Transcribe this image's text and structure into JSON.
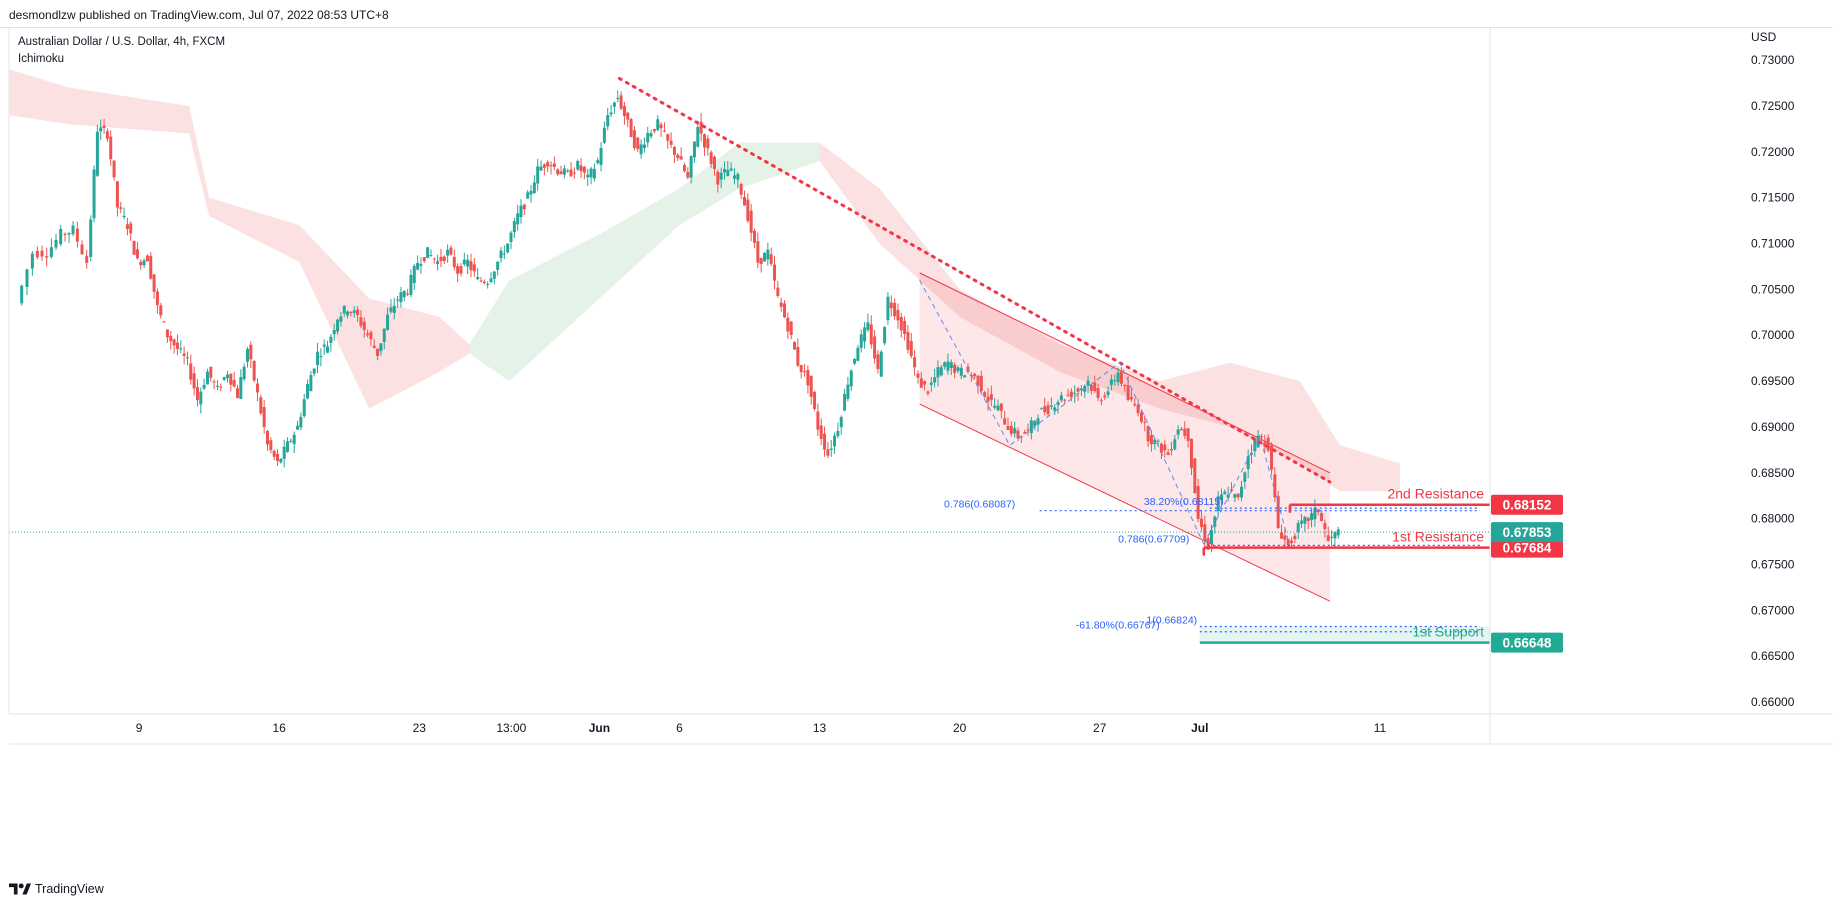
{
  "header": {
    "publisher_line": "desmondlzw published on TradingView.com, Jul 07, 2022 08:53 UTC+8"
  },
  "legend": {
    "symbol_line": "Australian Dollar / U.S. Dollar, 4h, FXCM",
    "indicator": "Ichimoku"
  },
  "footer": {
    "brand": "TradingView"
  },
  "colors": {
    "up": "#26a69a",
    "down": "#ef5350",
    "resistance": "#f23645",
    "support": "#22ab94",
    "fib": "#2962ff",
    "cloud_red": "#f8c9c9",
    "cloud_green": "#cfe8d5"
  },
  "chart_data": {
    "type": "candlestick",
    "currency_label": "USD",
    "y_ticks": [
      "0.73000",
      "0.72500",
      "0.72000",
      "0.71500",
      "0.71000",
      "0.70500",
      "0.70000",
      "0.69500",
      "0.69000",
      "0.68500",
      "0.68000",
      "0.67500",
      "0.67000",
      "0.66500",
      "0.66000"
    ],
    "ylim": [
      0.6587,
      0.7335
    ],
    "x_ticks": [
      {
        "label": "9",
        "day": 9
      },
      {
        "label": "16",
        "day": 16
      },
      {
        "label": "23",
        "day": 23
      },
      {
        "label": "13:00",
        "day": 27.6
      },
      {
        "label": "Jun",
        "day": 32,
        "bold": true
      },
      {
        "label": "6",
        "day": 36
      },
      {
        "label": "13",
        "day": 43
      },
      {
        "label": "20",
        "day": 50
      },
      {
        "label": "27",
        "day": 57
      },
      {
        "label": "Jul",
        "day": 62,
        "bold": true
      },
      {
        "label": "11",
        "day": 71
      }
    ],
    "x_axis_days": [
      2.5,
      76.5
    ],
    "price_path": [
      [
        3.0,
        0.7035
      ],
      [
        3.8,
        0.709
      ],
      [
        4.5,
        0.709
      ],
      [
        5.2,
        0.711
      ],
      [
        5.8,
        0.7115
      ],
      [
        6.5,
        0.708
      ],
      [
        7.0,
        0.7225
      ],
      [
        7.5,
        0.722
      ],
      [
        8.0,
        0.714
      ],
      [
        8.5,
        0.712
      ],
      [
        9.0,
        0.708
      ],
      [
        9.5,
        0.7085
      ],
      [
        10.0,
        0.703
      ],
      [
        10.5,
        0.7
      ],
      [
        11.0,
        0.6985
      ],
      [
        11.5,
        0.697
      ],
      [
        12.0,
        0.693
      ],
      [
        12.5,
        0.696
      ],
      [
        13.0,
        0.694
      ],
      [
        13.5,
        0.696
      ],
      [
        14.0,
        0.6935
      ],
      [
        14.5,
        0.6985
      ],
      [
        15.0,
        0.6935
      ],
      [
        15.5,
        0.688
      ],
      [
        16.0,
        0.686
      ],
      [
        16.5,
        0.688
      ],
      [
        17.0,
        0.69
      ],
      [
        17.5,
        0.6945
      ],
      [
        18.0,
        0.698
      ],
      [
        18.5,
        0.699
      ],
      [
        19.0,
        0.702
      ],
      [
        19.5,
        0.703
      ],
      [
        20.0,
        0.702
      ],
      [
        20.5,
        0.7
      ],
      [
        21.0,
        0.698
      ],
      [
        21.5,
        0.702
      ],
      [
        22.0,
        0.704
      ],
      [
        22.5,
        0.705
      ],
      [
        23.0,
        0.708
      ],
      [
        23.5,
        0.709
      ],
      [
        24.0,
        0.708
      ],
      [
        24.5,
        0.709
      ],
      [
        25.0,
        0.707
      ],
      [
        25.5,
        0.708
      ],
      [
        26.0,
        0.706
      ],
      [
        26.5,
        0.706
      ],
      [
        27.0,
        0.708
      ],
      [
        27.5,
        0.71
      ],
      [
        28.0,
        0.713
      ],
      [
        28.5,
        0.715
      ],
      [
        29.0,
        0.718
      ],
      [
        29.5,
        0.719
      ],
      [
        30.0,
        0.718
      ],
      [
        30.5,
        0.7175
      ],
      [
        31.0,
        0.7185
      ],
      [
        31.5,
        0.717
      ],
      [
        32.0,
        0.719
      ],
      [
        32.5,
        0.724
      ],
      [
        33.0,
        0.726
      ],
      [
        33.5,
        0.723
      ],
      [
        34.0,
        0.72
      ],
      [
        34.5,
        0.722
      ],
      [
        35.0,
        0.723
      ],
      [
        35.5,
        0.721
      ],
      [
        36.0,
        0.7195
      ],
      [
        36.5,
        0.717
      ],
      [
        37.0,
        0.723
      ],
      [
        37.5,
        0.72
      ],
      [
        38.0,
        0.717
      ],
      [
        38.5,
        0.718
      ],
      [
        39.0,
        0.717
      ],
      [
        39.5,
        0.713
      ],
      [
        40.0,
        0.708
      ],
      [
        40.5,
        0.709
      ],
      [
        41.0,
        0.704
      ],
      [
        41.5,
        0.701
      ],
      [
        42.0,
        0.697
      ],
      [
        42.5,
        0.695
      ],
      [
        43.0,
        0.69
      ],
      [
        43.5,
        0.687
      ],
      [
        44.0,
        0.69
      ],
      [
        44.5,
        0.695
      ],
      [
        45.0,
        0.699
      ],
      [
        45.5,
        0.701
      ],
      [
        46.0,
        0.696
      ],
      [
        46.5,
        0.704
      ],
      [
        47.0,
        0.702
      ],
      [
        47.5,
        0.699
      ],
      [
        48.0,
        0.695
      ],
      [
        48.5,
        0.694
      ],
      [
        49.0,
        0.696
      ],
      [
        49.5,
        0.697
      ],
      [
        50.0,
        0.696
      ],
      [
        50.5,
        0.696
      ],
      [
        51.0,
        0.695
      ],
      [
        51.5,
        0.693
      ],
      [
        52.0,
        0.692
      ],
      [
        52.5,
        0.69
      ],
      [
        53.0,
        0.689
      ],
      [
        53.5,
        0.6895
      ],
      [
        54.0,
        0.6915
      ],
      [
        54.5,
        0.692
      ],
      [
        55.0,
        0.693
      ],
      [
        55.5,
        0.6935
      ],
      [
        56.0,
        0.694
      ],
      [
        56.5,
        0.695
      ],
      [
        57.0,
        0.693
      ],
      [
        57.5,
        0.694
      ],
      [
        58.0,
        0.696
      ],
      [
        58.5,
        0.693
      ],
      [
        59.0,
        0.692
      ],
      [
        59.5,
        0.689
      ],
      [
        60.0,
        0.688
      ],
      [
        60.5,
        0.687
      ],
      [
        61.0,
        0.69
      ],
      [
        61.5,
        0.689
      ],
      [
        62.0,
        0.68
      ],
      [
        62.5,
        0.677
      ],
      [
        63.0,
        0.682
      ],
      [
        63.5,
        0.683
      ],
      [
        64.0,
        0.682
      ],
      [
        64.5,
        0.687
      ],
      [
        65.0,
        0.689
      ],
      [
        65.5,
        0.688
      ],
      [
        66.0,
        0.679
      ],
      [
        66.5,
        0.677
      ],
      [
        67.0,
        0.679
      ],
      [
        67.5,
        0.68
      ],
      [
        68.0,
        0.681
      ],
      [
        68.5,
        0.6775
      ],
      [
        69.0,
        0.6785
      ]
    ],
    "ichimoku_cloud": [
      {
        "from": 2.5,
        "to": 5.5,
        "color": "red",
        "top": [
          0.729,
          0.727
        ],
        "bottom": [
          0.724,
          0.723
        ]
      },
      {
        "from": 5.5,
        "to": 11.5,
        "color": "red",
        "top": [
          0.727,
          0.725
        ],
        "bottom": [
          0.723,
          0.722
        ]
      },
      {
        "from": 11.5,
        "to": 12.5,
        "color": "red",
        "top": [
          0.725,
          0.715
        ],
        "bottom": [
          0.722,
          0.713
        ]
      },
      {
        "from": 12.5,
        "to": 17.0,
        "color": "red",
        "top": [
          0.715,
          0.712
        ],
        "bottom": [
          0.713,
          0.708
        ]
      },
      {
        "from": 17.0,
        "to": 20.5,
        "color": "red",
        "top": [
          0.712,
          0.704
        ],
        "bottom": [
          0.708,
          0.692
        ]
      },
      {
        "from": 20.5,
        "to": 24.0,
        "color": "red",
        "top": [
          0.704,
          0.702
        ],
        "bottom": [
          0.692,
          0.696
        ]
      },
      {
        "from": 24.0,
        "to": 25.5,
        "color": "red",
        "top": [
          0.702,
          0.699
        ],
        "bottom": [
          0.696,
          0.698
        ]
      },
      {
        "from": 25.5,
        "to": 27.5,
        "color": "green",
        "top": [
          0.699,
          0.706
        ],
        "bottom": [
          0.698,
          0.695
        ]
      },
      {
        "from": 27.5,
        "to": 32.0,
        "color": "green",
        "top": [
          0.706,
          0.711
        ],
        "bottom": [
          0.695,
          0.704
        ]
      },
      {
        "from": 32.0,
        "to": 36.0,
        "color": "green",
        "top": [
          0.711,
          0.716
        ],
        "bottom": [
          0.704,
          0.712
        ]
      },
      {
        "from": 36.0,
        "to": 39.0,
        "color": "green",
        "top": [
          0.716,
          0.721
        ],
        "bottom": [
          0.712,
          0.716
        ]
      },
      {
        "from": 39.0,
        "to": 43.0,
        "color": "green",
        "top": [
          0.721,
          0.721
        ],
        "bottom": [
          0.716,
          0.719
        ]
      },
      {
        "from": 43.0,
        "to": 46.0,
        "color": "red",
        "top": [
          0.721,
          0.716
        ],
        "bottom": [
          0.719,
          0.71
        ]
      },
      {
        "from": 46.0,
        "to": 50.0,
        "color": "red",
        "top": [
          0.716,
          0.705
        ],
        "bottom": [
          0.71,
          0.702
        ]
      },
      {
        "from": 50.0,
        "to": 55.0,
        "color": "red",
        "top": [
          0.705,
          0.699
        ],
        "bottom": [
          0.702,
          0.696
        ]
      },
      {
        "from": 55.0,
        "to": 60.0,
        "color": "red",
        "top": [
          0.699,
          0.695
        ],
        "bottom": [
          0.696,
          0.692
        ]
      },
      {
        "from": 60.0,
        "to": 63.5,
        "color": "red",
        "top": [
          0.695,
          0.697
        ],
        "bottom": [
          0.692,
          0.69
        ]
      },
      {
        "from": 63.5,
        "to": 67.0,
        "color": "red",
        "top": [
          0.697,
          0.695
        ],
        "bottom": [
          0.69,
          0.686
        ]
      },
      {
        "from": 67.0,
        "to": 69.0,
        "color": "red",
        "top": [
          0.695,
          0.688
        ],
        "bottom": [
          0.686,
          0.683
        ]
      },
      {
        "from": 69.0,
        "to": 72.0,
        "color": "red",
        "top": [
          0.688,
          0.686
        ],
        "bottom": [
          0.683,
          0.683
        ]
      }
    ],
    "trendline": {
      "from": [
        33.0,
        0.728
      ],
      "to": [
        68.5,
        0.684
      ]
    },
    "channel": {
      "upper": {
        "from": [
          48.0,
          0.7068
        ],
        "to": [
          68.5,
          0.685
        ]
      },
      "lower": {
        "from": [
          48.0,
          0.6925
        ],
        "to": [
          68.5,
          0.671
        ]
      }
    },
    "fib_dashed_path": [
      [
        48.0,
        0.706
      ],
      [
        52.5,
        0.688
      ],
      [
        58.0,
        0.697
      ],
      [
        62.2,
        0.6772
      ]
    ],
    "fib_dashed_path2": [
      [
        62.2,
        0.6772
      ],
      [
        65.0,
        0.689
      ],
      [
        66.5,
        0.677
      ]
    ],
    "levels": [
      {
        "name": "2nd Resistance",
        "value": 0.68152,
        "price_label": "0.68152",
        "color": "resistance",
        "from": 66.5
      },
      {
        "name": "1st Resistance",
        "value": 0.67684,
        "price_label": "0.67684",
        "color": "resistance",
        "from": 62.2
      },
      {
        "name": "1st Support",
        "value": 0.66648,
        "price_label": "0.66648",
        "color": "support",
        "from": 62.0
      }
    ],
    "current_price": {
      "value": 0.67853,
      "label": "0.67853"
    },
    "fib_annotations": [
      {
        "text": "0.786(0.68087)",
        "value": 0.68087,
        "from": 54.0,
        "to": 76.0,
        "label_day": 51.0
      },
      {
        "text": "38.20%(0.68115)",
        "value": 0.68115,
        "from": 62.5,
        "to": 76.0,
        "label_day": 61.2
      },
      {
        "text": "0.786(0.67709)",
        "value": 0.67709,
        "from": 62.4,
        "to": 76.0,
        "label_day": 59.7
      },
      {
        "text": "1(0.66824)",
        "value": 0.66824,
        "from": 62.0,
        "to": 76.0,
        "label_day": 60.6
      },
      {
        "text": "-61.80%(0.66767)",
        "value": 0.66767,
        "from": 62.0,
        "to": 76.0,
        "label_day": 57.9
      }
    ]
  }
}
